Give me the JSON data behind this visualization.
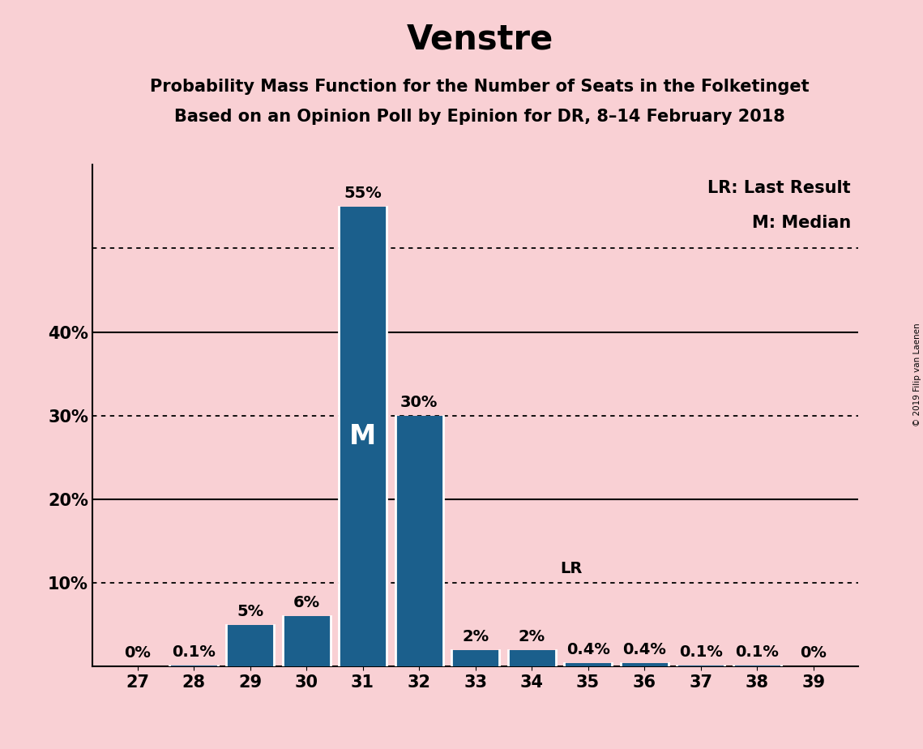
{
  "title": "Venstre",
  "subtitle1": "Probability Mass Function for the Number of Seats in the Folketinget",
  "subtitle2": "Based on an Opinion Poll by Epinion for DR, 8–14 February 2018",
  "categories": [
    27,
    28,
    29,
    30,
    31,
    32,
    33,
    34,
    35,
    36,
    37,
    38,
    39
  ],
  "values": [
    0.0,
    0.1,
    5.0,
    6.0,
    55.0,
    30.0,
    2.0,
    2.0,
    0.4,
    0.4,
    0.1,
    0.1,
    0.0
  ],
  "bar_labels": [
    "0%",
    "0.1%",
    "5%",
    "6%",
    "55%",
    "30%",
    "2%",
    "2%",
    "0.4%",
    "0.4%",
    "0.1%",
    "0.1%",
    "0%"
  ],
  "bar_color": "#1b5f8c",
  "background_color": "#f9d0d4",
  "text_color": "#000000",
  "median_seat": 31,
  "lr_seat": 34,
  "ylim": [
    0,
    60
  ],
  "hline_dotted": [
    10,
    30,
    50
  ],
  "hline_solid": [
    20,
    40
  ],
  "ytick_positions": [
    10,
    20,
    30,
    40
  ],
  "ytick_labels": [
    "10%",
    "20%",
    "30%",
    "40%"
  ],
  "legend_lr": "LR: Last Result",
  "legend_m": "M: Median",
  "copyright": "© 2019 Filip van Laenen",
  "title_fontsize": 30,
  "subtitle_fontsize": 15,
  "label_fontsize": 14,
  "tick_fontsize": 15,
  "legend_fontsize": 15
}
